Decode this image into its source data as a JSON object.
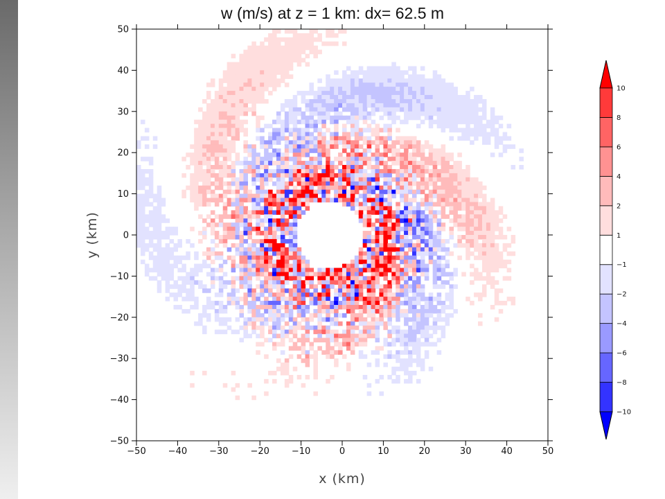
{
  "chart_data": {
    "type": "heatmap",
    "title": "w (m/s) at z = 1 km:  dx= 62.5 m",
    "xlabel": "x (km)",
    "ylabel": "y (km)",
    "xlim": [
      -50,
      50
    ],
    "ylim": [
      -50,
      50
    ],
    "xticks": [
      -50,
      -40,
      -30,
      -20,
      -10,
      0,
      10,
      20,
      30,
      40,
      50
    ],
    "yticks": [
      -50,
      -40,
      -30,
      -20,
      -10,
      0,
      10,
      20,
      30,
      40,
      50
    ],
    "xtick_labels": [
      "−50",
      "−40",
      "−30",
      "−20",
      "−10",
      "0",
      "10",
      "20",
      "30",
      "40",
      "50"
    ],
    "ytick_labels": [
      "−50",
      "−40",
      "−30",
      "−20",
      "−10",
      "0",
      "10",
      "20",
      "30",
      "40",
      "50"
    ],
    "colorbar": {
      "levels": [
        -10,
        -8,
        -6,
        -4,
        -2,
        -1,
        1,
        2,
        4,
        6,
        8,
        10
      ],
      "labels": [
        "−10",
        "−8",
        "−6",
        "−4",
        "−2",
        "−1",
        "1",
        "2",
        "4",
        "6",
        "8",
        "10"
      ],
      "colors": [
        "#0000ff",
        "#3333ff",
        "#6666ff",
        "#9a9aff",
        "#c4c4ff",
        "#e2e2ff",
        "#ffffff",
        "#ffdede",
        "#ffbbbb",
        "#ff9292",
        "#ff6464",
        "#ff3a3a",
        "#ff0000"
      ],
      "extend": "both"
    },
    "features": {
      "eye_radius_km": 8,
      "eyewall_radius_km": 13,
      "eye_center_km": [
        -3,
        0
      ],
      "spiral_bands": "outer rainbands of alternating positive and negative w spiraling outward to about 45 km"
    }
  }
}
